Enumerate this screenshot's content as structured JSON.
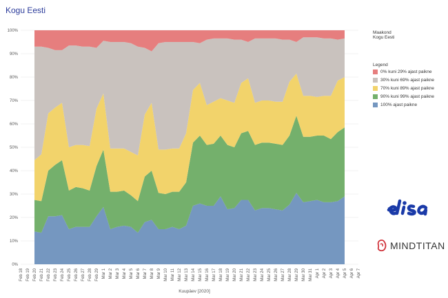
{
  "title": "Kogu Eesti",
  "filter": {
    "header": "Maakond",
    "value": "Kogu Eesti"
  },
  "legend": {
    "title": "Legend",
    "items": [
      {
        "label": "0% kuni 29% ajast paikne",
        "color": "#e67e7e"
      },
      {
        "label": "30% kuni 69% ajast paikne",
        "color": "#c9c2be"
      },
      {
        "label": "70% kuni 89% ajast paikne",
        "color": "#f2d36b"
      },
      {
        "label": "90% kuni 99% ajast paikne",
        "color": "#74b06c"
      },
      {
        "label": "100% ajast paikne",
        "color": "#7597c0"
      }
    ]
  },
  "logos": {
    "elisa": "elisa",
    "mindtitan": "MINDTITAN"
  },
  "chart_data": {
    "type": "area",
    "stacked": true,
    "xlabel": "Kuupäev [2020]",
    "ylabel": "",
    "ylim": [
      0,
      100
    ],
    "y_ticks": [
      "0%",
      "10%",
      "20%",
      "30%",
      "40%",
      "50%",
      "60%",
      "70%",
      "80%",
      "90%",
      "100%"
    ],
    "grid": true,
    "x_ticks": [
      "Feb 18",
      "Feb 19",
      "Feb 20",
      "Feb 21",
      "Feb 22",
      "Feb 23",
      "Feb 24",
      "Feb 25",
      "Feb 26",
      "Feb 27",
      "Feb 28",
      "Feb 29",
      "Mar 1",
      "Mar 2",
      "Mar 3",
      "Mar 4",
      "Mar 5",
      "Mar 6",
      "Mar 7",
      "Mar 8",
      "Mar 9",
      "Mar 10",
      "Mar 11",
      "Mar 12",
      "Mar 13",
      "Mar 14",
      "Mar 15",
      "Mar 16",
      "Mar 17",
      "Mar 18",
      "Mar 19",
      "Mar 20",
      "Mar 21",
      "Mar 22",
      "Mar 23",
      "Mar 24",
      "Mar 25",
      "Mar 26",
      "Mar 27",
      "Mar 28",
      "Mar 29",
      "Mar 30",
      "Mar 31",
      "Apr 1",
      "Apr 2",
      "Apr 3",
      "Apr 4",
      "Apr 5",
      "Apr 6",
      "Apr 7"
    ],
    "x": [
      "Feb 20",
      "Feb 21",
      "Feb 22",
      "Feb 23",
      "Feb 24",
      "Feb 25",
      "Feb 26",
      "Feb 27",
      "Feb 28",
      "Feb 29",
      "Mar 1",
      "Mar 2",
      "Mar 3",
      "Mar 4",
      "Mar 5",
      "Mar 6",
      "Mar 7",
      "Mar 8",
      "Mar 9",
      "Mar 10",
      "Mar 11",
      "Mar 12",
      "Mar 13",
      "Mar 14",
      "Mar 15",
      "Mar 16",
      "Mar 17",
      "Mar 18",
      "Mar 19",
      "Mar 20",
      "Mar 21",
      "Mar 22",
      "Mar 23",
      "Mar 24",
      "Mar 25",
      "Mar 26",
      "Mar 27",
      "Mar 28",
      "Mar 29",
      "Mar 30",
      "Mar 31",
      "Apr 1",
      "Apr 2",
      "Apr 3",
      "Apr 4",
      "Apr 5"
    ],
    "series": [
      {
        "name": "100% ajast paikne",
        "color": "#7597c0",
        "values": [
          14,
          13.5,
          20.5,
          20.5,
          21,
          15,
          16,
          16,
          16,
          20.5,
          24.5,
          15,
          16,
          16.5,
          16,
          13.5,
          18,
          19,
          15,
          15,
          16,
          15,
          16.5,
          25,
          26,
          25,
          25,
          29,
          23.5,
          24,
          27.5,
          27.5,
          23,
          24,
          24,
          23.5,
          23,
          25.5,
          30.5,
          26.5,
          27,
          27.5,
          26.5,
          26.5,
          27,
          29
        ]
      },
      {
        "name": "90% kuni 99% ajast paikne",
        "color": "#74b06c",
        "values": [
          27.5,
          27,
          40,
          42.5,
          44.5,
          31.5,
          33,
          32.5,
          31.5,
          42,
          49,
          31,
          31,
          31.5,
          29.5,
          27,
          37.5,
          40,
          30.5,
          30,
          31,
          31,
          35,
          52,
          55,
          51,
          51.5,
          55,
          51,
          50,
          56,
          57,
          51,
          52,
          52,
          51.5,
          51,
          55,
          63.5,
          54.5,
          54.5,
          55,
          55,
          53.5,
          56.5,
          58.5
        ]
      },
      {
        "name": "70% kuni 89% ajast paikne",
        "color": "#f2d36b",
        "values": [
          44.5,
          47,
          64.5,
          67,
          69,
          50,
          51,
          51,
          50.5,
          66.5,
          73,
          49.5,
          49.5,
          49.5,
          48,
          46.5,
          64,
          69,
          49,
          49,
          49.5,
          49.5,
          56,
          74.5,
          77.5,
          68,
          69.5,
          71,
          70,
          69,
          77.5,
          79.5,
          69,
          70,
          70,
          69.5,
          69.5,
          78,
          81.5,
          72,
          72,
          71.5,
          72,
          72,
          78.5,
          80
        ]
      },
      {
        "name": "30% kuni 69% ajast paikne",
        "color": "#c9c2be",
        "values": [
          93,
          93,
          92.5,
          91.5,
          91.5,
          93.5,
          93.5,
          93,
          93,
          92.5,
          95.5,
          95,
          95,
          95,
          94.5,
          93,
          92.5,
          91,
          94.5,
          95,
          95,
          95,
          95,
          95,
          94.5,
          96,
          96.5,
          96.5,
          96.5,
          96,
          96,
          95,
          96.5,
          96.5,
          96.5,
          96.5,
          96,
          96,
          95,
          97,
          97,
          97,
          96.5,
          96.5,
          96,
          96.5
        ]
      },
      {
        "name": "0% kuni 29% ajast paikne",
        "color": "#e67e7e",
        "values": [
          100,
          100,
          100,
          100,
          100,
          100,
          100,
          100,
          100,
          100,
          100,
          100,
          100,
          100,
          100,
          100,
          100,
          100,
          100,
          100,
          100,
          100,
          100,
          100,
          100,
          100,
          100,
          100,
          100,
          100,
          100,
          100,
          100,
          100,
          100,
          100,
          100,
          100,
          100,
          100,
          100,
          100,
          100,
          100,
          100,
          100
        ]
      }
    ]
  }
}
